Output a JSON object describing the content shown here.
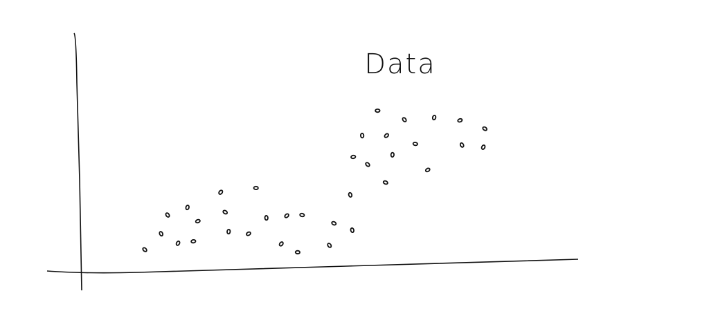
{
  "chart_data": {
    "type": "scatter",
    "title": "Data",
    "color": "#111111",
    "xlim": [
      0,
      100
    ],
    "ylim": [
      0,
      100
    ],
    "x": [
      59.6,
      65.0,
      71.0,
      76.2,
      81.2,
      56.5,
      61.4,
      67.2,
      76.6,
      80.9,
      54.7,
      57.6,
      62.6,
      69.7,
      61.2,
      54.1,
      28.0,
      35.1,
      17.3,
      21.3,
      23.4,
      28.9,
      37.2,
      41.3,
      44.4,
      16.0,
      19.4,
      22.5,
      12.7,
      29.6,
      33.6,
      50.8,
      54.5,
      40.2,
      43.5,
      49.9
    ],
    "values": [
      67.9,
      64.1,
      65.0,
      63.8,
      60.3,
      57.4,
      57.4,
      53.9,
      53.4,
      52.5,
      48.4,
      45.2,
      49.3,
      42.9,
      37.6,
      32.4,
      33.5,
      35.3,
      23.9,
      27.1,
      21.3,
      25.1,
      22.7,
      23.6,
      23.9,
      16.0,
      12.0,
      12.8,
      9.3,
      16.9,
      16.0,
      20.4,
      17.5,
      11.7,
      8.2,
      11.1
    ]
  }
}
